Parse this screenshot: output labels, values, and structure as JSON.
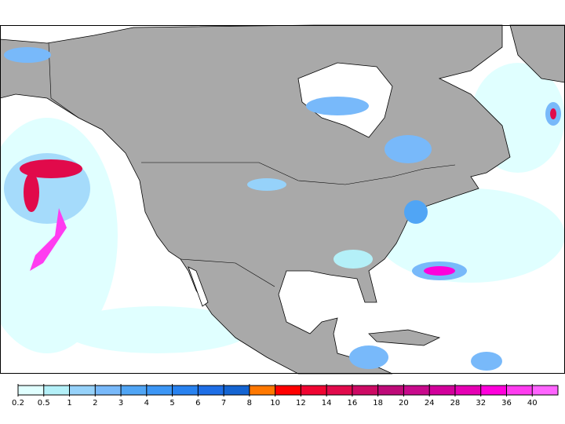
{
  "legend": {
    "labels": [
      "0.2",
      "0.5",
      "1",
      "2",
      "3",
      "4",
      "5",
      "6",
      "7",
      "8",
      "10",
      "12",
      "14",
      "16",
      "18",
      "20",
      "24",
      "28",
      "32",
      "36",
      "40"
    ],
    "colors": [
      "#e0ffff",
      "#b4f0f8",
      "#96d2fa",
      "#78b9fa",
      "#50a5f5",
      "#3c96f5",
      "#2882f0",
      "#1e6ee6",
      "#1464d2",
      "#ff7800",
      "#ff0000",
      "#f00532",
      "#e10a4b",
      "#cd0a64",
      "#be0a78",
      "#c80a8c",
      "#d2009b",
      "#e600b4",
      "#ff00dc",
      "#ff3cf0",
      "#ff64ff"
    ]
  },
  "map": {
    "land_color": "#a9a9a9",
    "water_color": "#ffffff"
  }
}
